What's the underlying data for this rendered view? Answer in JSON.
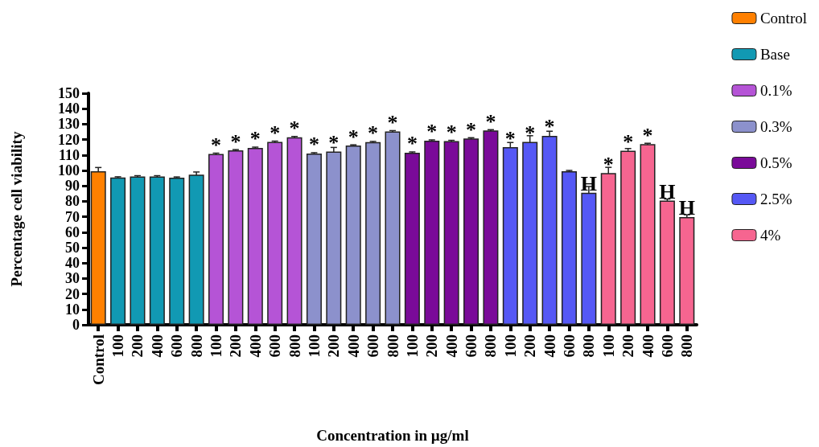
{
  "chart_data": {
    "type": "bar",
    "xlabel": "Concentration in µg/ml",
    "ylabel": "Percentage cell viability",
    "categories": [
      "Control",
      "100",
      "200",
      "400",
      "600",
      "800",
      "100",
      "200",
      "400",
      "600",
      "800",
      "100",
      "200",
      "400",
      "600",
      "800",
      "100",
      "200",
      "400",
      "600",
      "800",
      "100",
      "200",
      "400",
      "600",
      "800",
      "100",
      "200",
      "400",
      "600",
      "800"
    ],
    "series": [
      {
        "name": "Control",
        "color": "#ff8000",
        "values": [
          99.5,
          null,
          null,
          null,
          null,
          null,
          null,
          null,
          null,
          null,
          null,
          null,
          null,
          null,
          null,
          null,
          null,
          null,
          null,
          null,
          null,
          null,
          null,
          null,
          null,
          null,
          null,
          null,
          null,
          null,
          null
        ],
        "errors": [
          2.4,
          null,
          null,
          null,
          null,
          null,
          null,
          null,
          null,
          null,
          null,
          null,
          null,
          null,
          null,
          null,
          null,
          null,
          null,
          null,
          null,
          null,
          null,
          null,
          null,
          null,
          null,
          null,
          null,
          null,
          null
        ]
      },
      {
        "name": "Base",
        "color": "#1199b3",
        "values": [
          null,
          95.4,
          96.1,
          96.1,
          95.3,
          97.3,
          null,
          null,
          null,
          null,
          null,
          null,
          null,
          null,
          null,
          null,
          null,
          null,
          null,
          null,
          null,
          null,
          null,
          null,
          null,
          null,
          null,
          null,
          null,
          null,
          null
        ],
        "errors": [
          null,
          0.5,
          0.5,
          0.5,
          0.5,
          1.7,
          null,
          null,
          null,
          null,
          null,
          null,
          null,
          null,
          null,
          null,
          null,
          null,
          null,
          null,
          null,
          null,
          null,
          null,
          null,
          null,
          null,
          null,
          null,
          null,
          null
        ]
      },
      {
        "name": "0.1%",
        "color": "#b554d6",
        "values": [
          null,
          null,
          null,
          null,
          null,
          null,
          110.7,
          113,
          114.6,
          118.5,
          121.5,
          null,
          null,
          null,
          null,
          null,
          null,
          null,
          null,
          null,
          null,
          null,
          null,
          null,
          null,
          null,
          null,
          null,
          null,
          null,
          null
        ],
        "errors": [
          null,
          null,
          null,
          null,
          null,
          null,
          0.5,
          0.5,
          0.5,
          0.5,
          0.5,
          null,
          null,
          null,
          null,
          null,
          null,
          null,
          null,
          null,
          null,
          null,
          null,
          null,
          null,
          null,
          null,
          null,
          null,
          null,
          null
        ],
        "value_labels": [
          null,
          null,
          null,
          null,
          null,
          null,
          "*",
          "*",
          "*",
          "*",
          "*",
          null,
          null,
          null,
          null,
          null,
          null,
          null,
          null,
          null,
          null,
          null,
          null,
          null,
          null,
          null,
          null,
          null,
          null,
          null,
          null
        ]
      },
      {
        "name": "0.3%",
        "color": "#8c91cc",
        "values": [
          null,
          null,
          null,
          null,
          null,
          null,
          null,
          null,
          null,
          null,
          null,
          111,
          112.2,
          116.1,
          118.3,
          125.3,
          null,
          null,
          null,
          null,
          null,
          null,
          null,
          null,
          null,
          null,
          null,
          null,
          null,
          null,
          null
        ],
        "errors": [
          null,
          null,
          null,
          null,
          null,
          null,
          null,
          null,
          null,
          null,
          null,
          0.5,
          2.7,
          0.5,
          0.5,
          0.5,
          null,
          null,
          null,
          null,
          null,
          null,
          null,
          null,
          null,
          null,
          null,
          null,
          null,
          null,
          null
        ],
        "value_labels": [
          null,
          null,
          null,
          null,
          null,
          null,
          null,
          null,
          null,
          null,
          null,
          "*",
          "*",
          "*",
          "*",
          "*",
          null,
          null,
          null,
          null,
          null,
          null,
          null,
          null,
          null,
          null,
          null,
          null,
          null,
          null,
          null
        ]
      },
      {
        "name": "0.5%",
        "color": "#7a0a99",
        "values": [
          null,
          null,
          null,
          null,
          null,
          null,
          null,
          null,
          null,
          null,
          null,
          null,
          null,
          null,
          null,
          null,
          111.5,
          119.3,
          119,
          120.7,
          125.9,
          null,
          null,
          null,
          null,
          null,
          null,
          null,
          null,
          null,
          null
        ],
        "errors": [
          null,
          null,
          null,
          null,
          null,
          null,
          null,
          null,
          null,
          null,
          null,
          null,
          null,
          null,
          null,
          null,
          0.5,
          0.5,
          0.5,
          0.5,
          0.5,
          null,
          null,
          null,
          null,
          null,
          null,
          null,
          null,
          null,
          null
        ],
        "value_labels": [
          null,
          null,
          null,
          null,
          null,
          null,
          null,
          null,
          null,
          null,
          null,
          null,
          null,
          null,
          null,
          null,
          "*",
          "*",
          "*",
          "*",
          "*",
          null,
          null,
          null,
          null,
          null,
          null,
          null,
          null,
          null,
          null
        ]
      },
      {
        "name": "2.5%",
        "color": "#5558f5",
        "values": [
          null,
          null,
          null,
          null,
          null,
          null,
          null,
          null,
          null,
          null,
          null,
          null,
          null,
          null,
          null,
          null,
          null,
          null,
          null,
          null,
          null,
          115.1,
          118.5,
          122.4,
          99.5,
          85.6,
          null,
          null,
          null,
          null,
          null
        ],
        "errors": [
          null,
          null,
          null,
          null,
          null,
          null,
          null,
          null,
          null,
          null,
          null,
          null,
          null,
          null,
          null,
          null,
          null,
          null,
          null,
          null,
          null,
          3,
          4,
          3,
          0.5,
          4,
          null,
          null,
          null,
          null,
          null
        ],
        "value_labels": [
          null,
          null,
          null,
          null,
          null,
          null,
          null,
          null,
          null,
          null,
          null,
          null,
          null,
          null,
          null,
          null,
          null,
          null,
          null,
          null,
          null,
          "*",
          "*",
          "*",
          null,
          "H",
          null,
          null,
          null,
          null,
          null
        ]
      },
      {
        "name": "4%",
        "color": "#f66590",
        "values": [
          null,
          null,
          null,
          null,
          null,
          null,
          null,
          null,
          null,
          null,
          null,
          null,
          null,
          null,
          null,
          null,
          null,
          null,
          null,
          null,
          null,
          null,
          null,
          null,
          null,
          null,
          98.3,
          112.7,
          117.1,
          80.5,
          69.8
        ],
        "errors": [
          null,
          null,
          null,
          null,
          null,
          null,
          null,
          null,
          null,
          null,
          null,
          null,
          null,
          null,
          null,
          null,
          null,
          null,
          null,
          null,
          null,
          null,
          null,
          null,
          null,
          null,
          3.7,
          1.5,
          0.5,
          1,
          1.5
        ],
        "value_labels": [
          null,
          null,
          null,
          null,
          null,
          null,
          null,
          null,
          null,
          null,
          null,
          null,
          null,
          null,
          null,
          null,
          null,
          null,
          null,
          null,
          null,
          null,
          null,
          null,
          null,
          null,
          "*",
          "*",
          "*",
          "H",
          "H"
        ]
      }
    ],
    "ylim": [
      0,
      150
    ],
    "yticks": [
      0,
      10,
      20,
      30,
      40,
      50,
      60,
      70,
      80,
      90,
      100,
      110,
      120,
      130,
      140,
      150
    ],
    "grid": false,
    "legend": "top right"
  }
}
